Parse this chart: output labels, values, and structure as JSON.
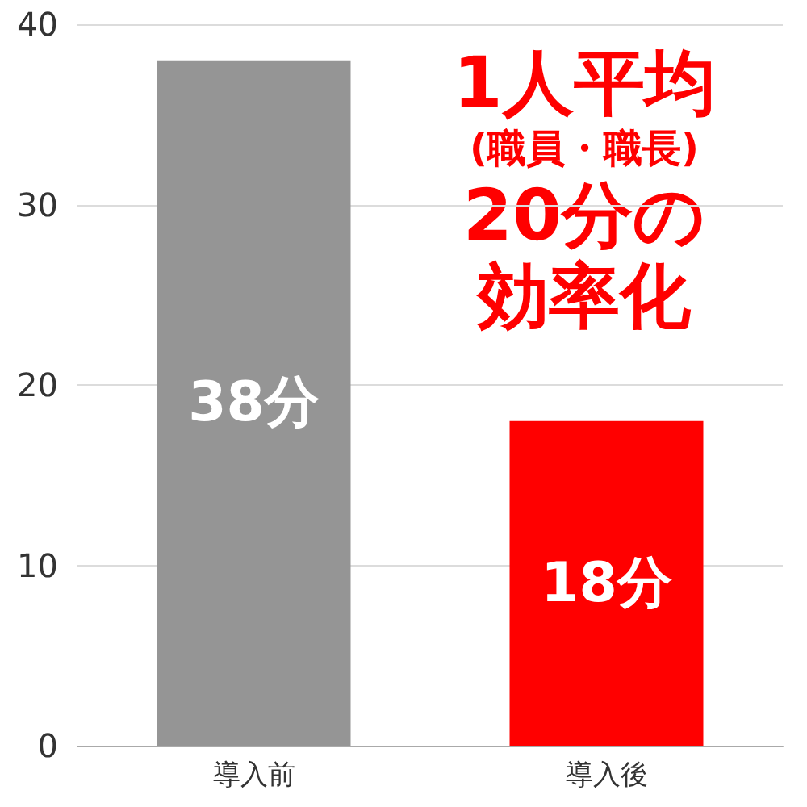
{
  "chart_data": {
    "type": "bar",
    "categories": [
      "導入前",
      "導入後"
    ],
    "values": [
      38,
      18
    ],
    "colors": [
      "#959595",
      "#ff0000"
    ],
    "value_labels": [
      "38分",
      "18分"
    ],
    "ylim": [
      0,
      40
    ],
    "yticks": [
      0,
      10,
      20,
      30,
      40
    ],
    "grid": "y",
    "annotations": [
      "1人平均",
      "(職員・職長)",
      "20分の",
      "効率化"
    ]
  }
}
